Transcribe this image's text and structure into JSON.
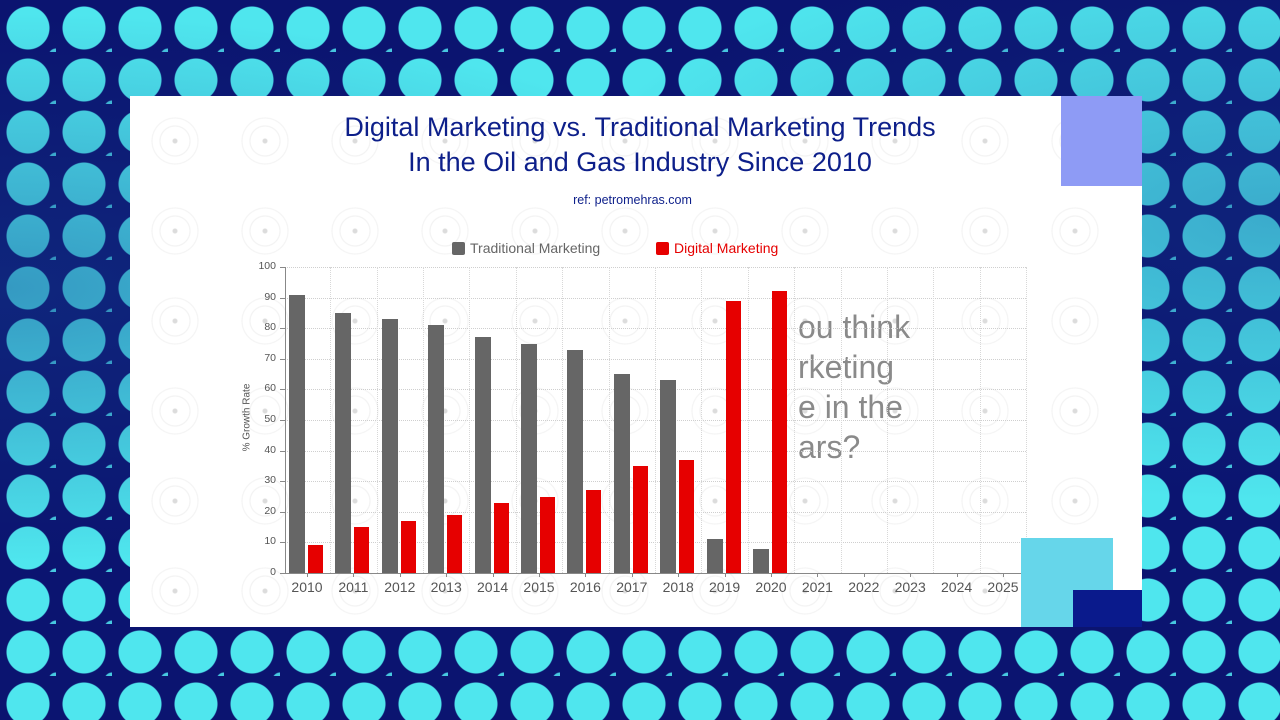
{
  "title": {
    "line1": "Digital Marketing vs. Traditional Marketing Trends",
    "line2": "In the Oil and Gas Industry Since 2010"
  },
  "ref": "ref: petromehras.com",
  "overlay_question": {
    "lines": [
      "ou think",
      "rketing",
      "e in the",
      "ars?"
    ]
  },
  "colors": {
    "title": "#0d1f8a",
    "traditional": "#666666",
    "digital": "#e60000",
    "background": "#0b1470",
    "dots": "#4fe6ee",
    "deco_top": "#8e9bf5",
    "deco_light": "#66d6ea",
    "deco_dark": "#0a1a8c"
  },
  "chart_data": {
    "type": "bar",
    "title": "Digital Marketing vs. Traditional Marketing Trends In the Oil and Gas Industry Since 2010",
    "subtitle": "ref: petromehras.com",
    "xlabel": "",
    "ylabel": "% Growth Rate",
    "ylim": [
      0,
      100
    ],
    "yticks": [
      0,
      10,
      20,
      30,
      40,
      50,
      60,
      70,
      80,
      90,
      100
    ],
    "grid": true,
    "legend_position": "top",
    "categories": [
      "2010",
      "2011",
      "2012",
      "2013",
      "2014",
      "2015",
      "2016",
      "2017",
      "2018",
      "2019",
      "2020",
      "2021",
      "2022",
      "2023",
      "2024",
      "2025"
    ],
    "series": [
      {
        "name": "Traditional Marketing",
        "color": "#666666",
        "values": [
          91,
          85,
          83,
          81,
          77,
          75,
          73,
          65,
          63,
          11,
          8,
          null,
          null,
          null,
          null,
          null
        ]
      },
      {
        "name": "Digital Marketing",
        "color": "#e60000",
        "values": [
          9,
          15,
          17,
          19,
          23,
          25,
          27,
          35,
          37,
          89,
          92,
          null,
          null,
          null,
          null,
          null
        ]
      }
    ]
  }
}
